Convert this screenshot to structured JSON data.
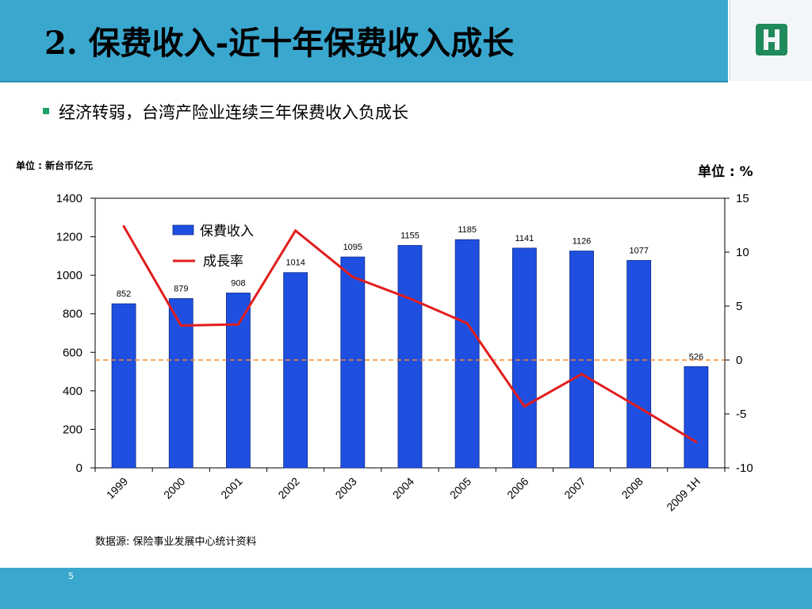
{
  "slide": {
    "title": "2. 保费收入-近十年保费收入成长",
    "bullet": "经济转弱，台湾产险业连续三年保费收入负成长",
    "unit_left": "单位 : 新台币亿元",
    "unit_right": "单位 : %",
    "source": "数据源: 保险事业发展中心统计资料",
    "page_number": "5"
  },
  "colors": {
    "header": "#3aa7cf",
    "bar": "#1f4fe0",
    "line": "#e11d1d",
    "zero_line": "#f08a24",
    "logo": "#1f8a5a"
  },
  "logo": {
    "icon": "company-logo-icon"
  },
  "chart_data": {
    "type": "bar",
    "categories": [
      "1999",
      "2000",
      "2001",
      "2002",
      "2003",
      "2004",
      "2005",
      "2006",
      "2007",
      "2008",
      "2009 1H"
    ],
    "series": [
      {
        "name": "保費收入",
        "type": "bar",
        "axis": "left",
        "values": [
          852,
          879,
          908,
          1014,
          1095,
          1155,
          1185,
          1141,
          1126,
          1077,
          526
        ]
      },
      {
        "name": "成長率",
        "type": "line",
        "axis": "right",
        "values": [
          12.4,
          3.2,
          3.3,
          12.0,
          7.7,
          5.7,
          3.4,
          -4.3,
          -1.3,
          -4.4,
          -7.6
        ]
      }
    ],
    "data_labels": [
      "852",
      "879",
      "908",
      "1014",
      "1095",
      "1155",
      "1185",
      "1141",
      "1126",
      "1077",
      "526"
    ],
    "y_left": {
      "ticks": [
        "0",
        "200",
        "400",
        "600",
        "800",
        "1000",
        "1200",
        "1400"
      ],
      "range": [
        0,
        1400
      ]
    },
    "y_right": {
      "ticks": [
        "-10",
        "-5",
        "0",
        "5",
        "10",
        "15"
      ],
      "range": [
        -10,
        15
      ]
    },
    "reference_line": {
      "axis": "right",
      "value": 0,
      "style": "dashed"
    },
    "legend_placement": "top-left inside plot",
    "grid": false
  }
}
